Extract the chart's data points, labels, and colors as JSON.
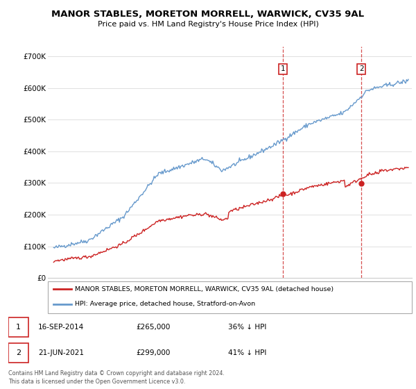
{
  "title": "MANOR STABLES, MORETON MORRELL, WARWICK, CV35 9AL",
  "subtitle": "Price paid vs. HM Land Registry's House Price Index (HPI)",
  "ylabel_ticks": [
    "£0",
    "£100K",
    "£200K",
    "£300K",
    "£400K",
    "£500K",
    "£600K",
    "£700K"
  ],
  "ytick_values": [
    0,
    100000,
    200000,
    300000,
    400000,
    500000,
    600000,
    700000
  ],
  "ylim": [
    0,
    730000
  ],
  "hpi_color": "#6699cc",
  "price_color": "#cc2222",
  "ann1_year": 2014.72,
  "ann1_price": 265000,
  "ann2_year": 2021.47,
  "ann2_price": 299000,
  "legend_line1": "MANOR STABLES, MORETON MORRELL, WARWICK, CV35 9AL (detached house)",
  "legend_line2": "HPI: Average price, detached house, Stratford-on-Avon",
  "footer": "Contains HM Land Registry data © Crown copyright and database right 2024.\nThis data is licensed under the Open Government Licence v3.0.",
  "note1_date": "16-SEP-2014",
  "note1_price": "£265,000",
  "note1_pct": "36% ↓ HPI",
  "note2_date": "21-JUN-2021",
  "note2_price": "£299,000",
  "note2_pct": "41% ↓ HPI"
}
